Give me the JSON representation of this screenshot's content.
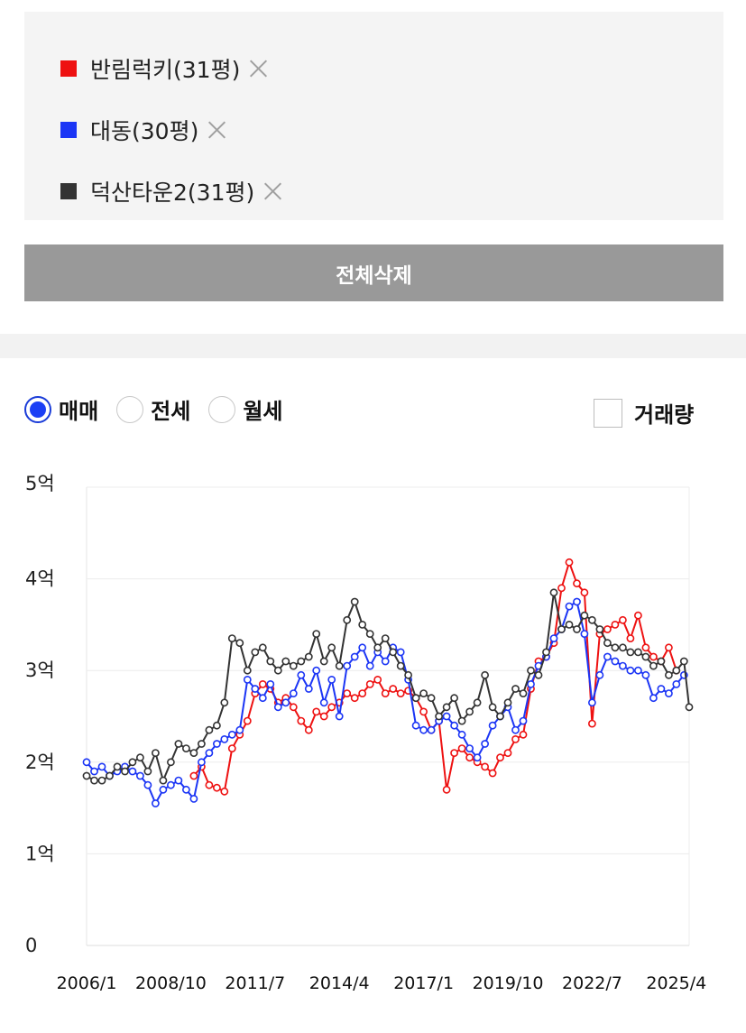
{
  "compare": {
    "items": [
      {
        "label": "반림럭키(31평)",
        "color": "#ee1111"
      },
      {
        "label": "대동(30평)",
        "color": "#1b35f5"
      },
      {
        "label": "덕산타운2(31평)",
        "color": "#333333"
      }
    ],
    "remove_icon": "close-icon",
    "delete_all_label": "전체삭제"
  },
  "controls": {
    "radios": [
      {
        "label": "매매",
        "checked": true
      },
      {
        "label": "전세",
        "checked": false
      },
      {
        "label": "월세",
        "checked": false
      }
    ],
    "volume_label": "거래량",
    "volume_checked": false
  },
  "chart_data": {
    "type": "line",
    "ylim": [
      0,
      5
    ],
    "y_ticks": [
      0,
      1,
      2,
      3,
      4,
      5
    ],
    "y_tick_labels": [
      "0",
      "1억",
      "2억",
      "3억",
      "4억",
      "5억"
    ],
    "xlim": [
      "2006-01",
      "2025-09"
    ],
    "x_ticks": [
      "2006-01",
      "2008-10",
      "2011-07",
      "2014-04",
      "2017-01",
      "2019-10",
      "2022-07",
      "2025-04"
    ],
    "x_tick_labels": [
      "2006/1",
      "2008/10",
      "2011/7",
      "2014/4",
      "2017/1",
      "2019/10",
      "2022/7",
      "2025/4"
    ],
    "grid": true,
    "series": [
      {
        "name": "반림럭키(31평)",
        "color": "#ee1111",
        "x": [
          "2009-07",
          "2009-10",
          "2010-01",
          "2010-04",
          "2010-07",
          "2010-10",
          "2011-01",
          "2011-04",
          "2011-07",
          "2011-10",
          "2012-01",
          "2012-04",
          "2012-07",
          "2012-10",
          "2013-01",
          "2013-04",
          "2013-07",
          "2013-10",
          "2014-01",
          "2014-04",
          "2014-07",
          "2014-10",
          "2015-01",
          "2015-04",
          "2015-07",
          "2015-10",
          "2016-01",
          "2016-04",
          "2016-07",
          "2016-10",
          "2017-01",
          "2017-04",
          "2017-07",
          "2017-10",
          "2018-01",
          "2018-04",
          "2018-07",
          "2018-10",
          "2019-01",
          "2019-04",
          "2019-07",
          "2019-10",
          "2020-01",
          "2020-04",
          "2020-07",
          "2020-10",
          "2021-01",
          "2021-04",
          "2021-07",
          "2021-10",
          "2022-01",
          "2022-04",
          "2022-07",
          "2022-10",
          "2023-01",
          "2023-04",
          "2023-07",
          "2023-10",
          "2024-01",
          "2024-04",
          "2024-07",
          "2024-10",
          "2025-01",
          "2025-04"
        ],
        "y": [
          1.85,
          1.95,
          1.75,
          1.72,
          1.68,
          2.15,
          2.3,
          2.45,
          2.75,
          2.85,
          2.8,
          2.65,
          2.7,
          2.6,
          2.45,
          2.35,
          2.55,
          2.5,
          2.6,
          2.65,
          2.75,
          2.7,
          2.75,
          2.85,
          2.9,
          2.75,
          2.8,
          2.75,
          2.78,
          2.7,
          2.55,
          2.35,
          2.45,
          1.7,
          2.1,
          2.15,
          2.05,
          2.0,
          1.95,
          1.88,
          2.05,
          2.1,
          2.25,
          2.3,
          2.8,
          3.1,
          3.15,
          3.3,
          3.9,
          4.18,
          3.95,
          3.85,
          2.42,
          3.4,
          3.45,
          3.5,
          3.55,
          3.35,
          3.6,
          3.25,
          3.15,
          3.1,
          3.25,
          3.0
        ]
      },
      {
        "name": "대동(30평)",
        "color": "#1b35f5",
        "x": [
          "2006-01",
          "2006-04",
          "2006-07",
          "2006-10",
          "2007-01",
          "2007-04",
          "2007-07",
          "2007-10",
          "2008-01",
          "2008-04",
          "2008-07",
          "2008-10",
          "2009-01",
          "2009-04",
          "2009-07",
          "2009-10",
          "2010-01",
          "2010-04",
          "2010-07",
          "2010-10",
          "2011-01",
          "2011-04",
          "2011-07",
          "2011-10",
          "2012-01",
          "2012-04",
          "2012-07",
          "2012-10",
          "2013-01",
          "2013-04",
          "2013-07",
          "2013-10",
          "2014-01",
          "2014-04",
          "2014-07",
          "2014-10",
          "2015-01",
          "2015-04",
          "2015-07",
          "2015-10",
          "2016-01",
          "2016-04",
          "2016-07",
          "2016-10",
          "2017-01",
          "2017-04",
          "2017-07",
          "2017-10",
          "2018-01",
          "2018-04",
          "2018-07",
          "2018-10",
          "2019-01",
          "2019-04",
          "2019-07",
          "2019-10",
          "2020-01",
          "2020-04",
          "2020-07",
          "2020-10",
          "2021-01",
          "2021-04",
          "2021-07",
          "2021-10",
          "2022-01",
          "2022-04",
          "2022-07",
          "2022-10",
          "2023-01",
          "2023-04",
          "2023-07",
          "2023-10",
          "2024-01",
          "2024-04",
          "2024-07",
          "2024-10",
          "2025-01",
          "2025-04",
          "2025-07"
        ],
        "y": [
          2.0,
          1.9,
          1.95,
          1.85,
          1.9,
          1.95,
          1.9,
          1.85,
          1.75,
          1.55,
          1.7,
          1.75,
          1.8,
          1.7,
          1.6,
          2.0,
          2.1,
          2.2,
          2.25,
          2.3,
          2.35,
          2.9,
          2.8,
          2.7,
          2.85,
          2.6,
          2.65,
          2.75,
          2.95,
          2.8,
          3.0,
          2.65,
          2.9,
          2.5,
          3.05,
          3.15,
          3.25,
          3.05,
          3.2,
          3.1,
          3.25,
          3.2,
          2.9,
          2.4,
          2.35,
          2.35,
          2.45,
          2.5,
          2.4,
          2.3,
          2.15,
          2.05,
          2.2,
          2.4,
          2.5,
          2.6,
          2.35,
          2.45,
          2.85,
          3.05,
          3.15,
          3.35,
          3.45,
          3.7,
          3.75,
          3.4,
          2.65,
          2.95,
          3.15,
          3.1,
          3.05,
          3.0,
          3.0,
          2.95,
          2.7,
          2.8,
          2.75,
          2.85,
          2.95
        ]
      },
      {
        "name": "덕산타운2(31평)",
        "color": "#333333",
        "x": [
          "2006-01",
          "2006-04",
          "2006-07",
          "2006-10",
          "2007-01",
          "2007-04",
          "2007-07",
          "2007-10",
          "2008-01",
          "2008-04",
          "2008-07",
          "2008-10",
          "2009-01",
          "2009-04",
          "2009-07",
          "2009-10",
          "2010-01",
          "2010-04",
          "2010-07",
          "2010-10",
          "2011-01",
          "2011-04",
          "2011-07",
          "2011-10",
          "2012-01",
          "2012-04",
          "2012-07",
          "2012-10",
          "2013-01",
          "2013-04",
          "2013-07",
          "2013-10",
          "2014-01",
          "2014-04",
          "2014-07",
          "2014-10",
          "2015-01",
          "2015-04",
          "2015-07",
          "2015-10",
          "2016-01",
          "2016-04",
          "2016-07",
          "2016-10",
          "2017-01",
          "2017-04",
          "2017-07",
          "2017-10",
          "2018-01",
          "2018-04",
          "2018-07",
          "2018-10",
          "2019-01",
          "2019-04",
          "2019-07",
          "2019-10",
          "2020-01",
          "2020-04",
          "2020-07",
          "2020-10",
          "2021-01",
          "2021-04",
          "2021-07",
          "2021-10",
          "2022-01",
          "2022-04",
          "2022-07",
          "2022-10",
          "2023-01",
          "2023-04",
          "2023-07",
          "2023-10",
          "2024-01",
          "2024-04",
          "2024-07",
          "2024-10",
          "2025-01",
          "2025-04",
          "2025-07",
          "2025-09"
        ],
        "y": [
          1.85,
          1.8,
          1.8,
          1.85,
          1.95,
          1.9,
          2.0,
          2.05,
          1.9,
          2.1,
          1.8,
          2.0,
          2.2,
          2.15,
          2.1,
          2.2,
          2.35,
          2.4,
          2.65,
          3.35,
          3.3,
          3.0,
          3.2,
          3.25,
          3.1,
          3.0,
          3.1,
          3.05,
          3.1,
          3.15,
          3.4,
          3.1,
          3.25,
          3.05,
          3.55,
          3.75,
          3.5,
          3.4,
          3.25,
          3.35,
          3.2,
          3.05,
          2.95,
          2.7,
          2.75,
          2.7,
          2.5,
          2.6,
          2.7,
          2.45,
          2.55,
          2.65,
          2.95,
          2.6,
          2.5,
          2.65,
          2.8,
          2.75,
          3.0,
          2.95,
          3.2,
          3.85,
          3.45,
          3.5,
          3.45,
          3.6,
          3.55,
          3.45,
          3.3,
          3.25,
          3.25,
          3.2,
          3.2,
          3.15,
          3.05,
          3.1,
          2.95,
          3.0,
          3.1,
          2.6
        ]
      }
    ]
  }
}
